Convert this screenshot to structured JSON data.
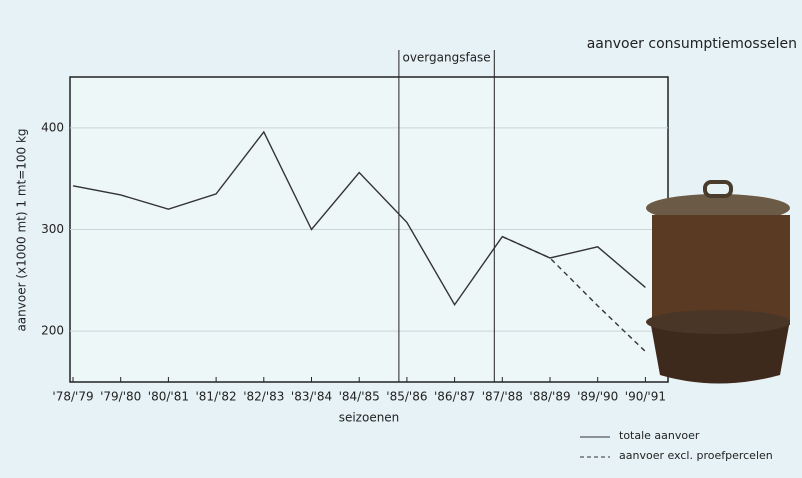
{
  "chart_data": {
    "type": "line",
    "title": "aanvoer consumptiemosselen",
    "x_label": "seizoenen",
    "y_label": "aanvoer (x1000 mt) 1 mt=100 kg",
    "categories": [
      "'78/'79",
      "'79/'80",
      "'80/'81",
      "'81/'82",
      "'82/'83",
      "'83/'84",
      "'84/'85",
      "'85/'86",
      "'86/'87",
      "'87/'88",
      "'88/'89",
      "'89/'90",
      "'90/'91"
    ],
    "series": [
      {
        "name": "totale aanvoer",
        "color": "#333333",
        "dash": false,
        "values": [
          343,
          334,
          320,
          335,
          396,
          300,
          356,
          307,
          226,
          293,
          272,
          283,
          243
        ]
      },
      {
        "name": "aanvoer excl. proefpercelen",
        "color": "#333333",
        "dash": true,
        "values": [
          null,
          null,
          null,
          null,
          null,
          null,
          null,
          null,
          null,
          293,
          272,
          225,
          180
        ]
      }
    ],
    "annotation": {
      "text": "overgangsfase",
      "from": "'85/'86",
      "to": "'87/'88"
    },
    "ylim": [
      150,
      450
    ],
    "yticks": [
      200,
      300,
      400
    ],
    "grid": true
  }
}
